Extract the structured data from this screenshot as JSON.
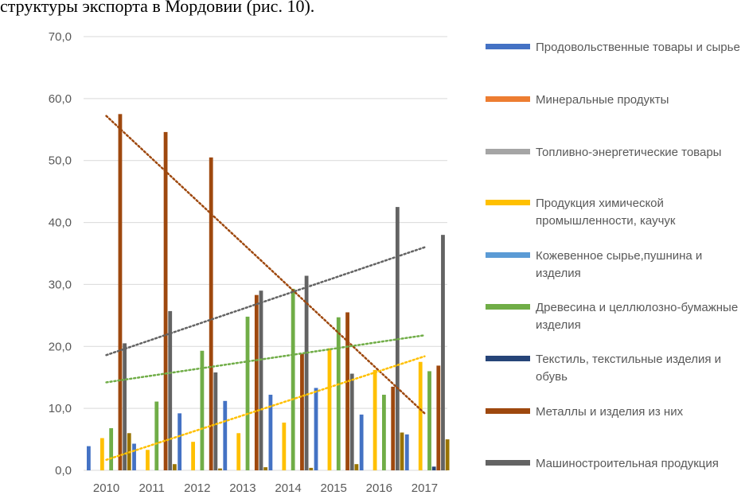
{
  "heading": "структуры экспорта в Мордовии (рис. 10).",
  "chart_data": {
    "type": "bar",
    "categories": [
      "2010",
      "2011",
      "2012",
      "2013",
      "2014",
      "2015",
      "2016",
      "2017"
    ],
    "ylim": [
      0,
      70
    ],
    "yticks": [
      "0,0",
      "10,0",
      "20,0",
      "30,0",
      "40,0",
      "50,0",
      "60,0",
      "70,0"
    ],
    "grid": true,
    "legend_position": "right",
    "series": [
      {
        "name": "Продовольственные товары и сырье",
        "color": "#4472C4",
        "values": [
          3.9,
          4.3,
          9.2,
          11.2,
          12.2,
          13.3,
          9.0,
          5.8
        ]
      },
      {
        "name": "Минеральные продукты",
        "color": "#ED7D31",
        "values": [
          0,
          0,
          0,
          0,
          0,
          0,
          0,
          0
        ]
      },
      {
        "name": "Топливно-энергетические товары",
        "color": "#A5A5A5",
        "values": [
          0,
          0,
          0,
          0,
          0,
          0,
          0,
          0
        ]
      },
      {
        "name": "Продукция химической промышленности, каучук",
        "color": "#FFC000",
        "values": [
          5.2,
          3.3,
          4.6,
          6.0,
          7.7,
          19.7,
          16.2,
          17.5
        ]
      },
      {
        "name": "Кожевенное сырье,пушнина и изделия",
        "color": "#5B9BD5",
        "values": [
          0,
          0,
          0,
          0,
          0,
          0,
          0,
          0
        ]
      },
      {
        "name": "Древесина и целлюлозно-бумажные изделия",
        "color": "#70AD47",
        "values": [
          6.8,
          11.1,
          19.3,
          24.8,
          29.3,
          24.7,
          12.2,
          16.0
        ]
      },
      {
        "name": "Текстиль, текстильные изделия и обувь",
        "color": "#264478",
        "values": [
          0,
          0,
          0,
          0,
          0,
          0,
          0,
          0.6
        ]
      },
      {
        "name": "Металлы и изделия из них",
        "color": "#9E480E",
        "values": [
          57.5,
          54.6,
          50.5,
          28.3,
          18.8,
          25.5,
          13.5,
          16.9
        ]
      },
      {
        "name": "Машиностроительная продукция",
        "color": "#636363",
        "values": [
          20.5,
          25.7,
          15.8,
          29.0,
          31.4,
          15.6,
          42.5,
          38.0
        ]
      },
      {
        "name": "",
        "color": "#997300",
        "values": [
          6.0,
          1.0,
          0.3,
          0.5,
          0.4,
          1.0,
          6.1,
          5.0
        ]
      }
    ],
    "trendlines": [
      {
        "color": "#9E480E",
        "start": 57.2,
        "end": 9.2
      },
      {
        "color": "#636363",
        "start": 18.6,
        "end": 36.0
      },
      {
        "color": "#70AD47",
        "start": 14.2,
        "end": 21.8
      },
      {
        "color": "#FFC000",
        "start": 1.7,
        "end": 18.4
      }
    ]
  }
}
